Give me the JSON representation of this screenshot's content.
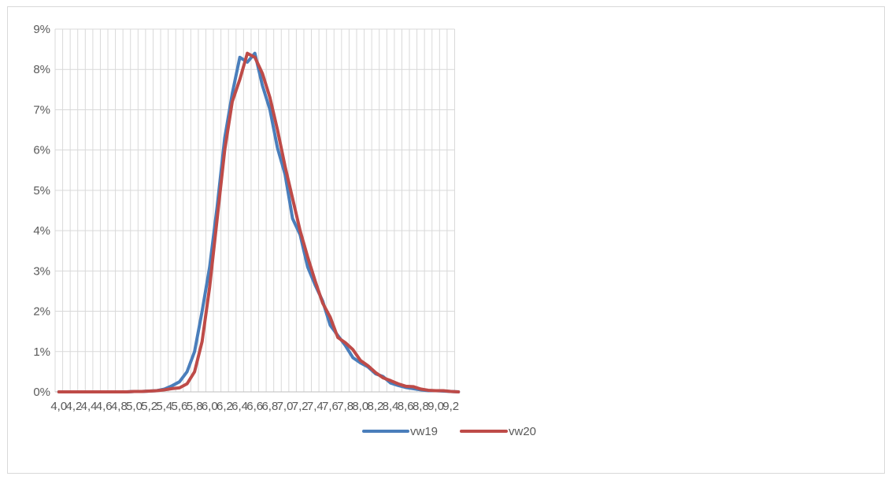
{
  "chart_data": {
    "type": "line",
    "title": "",
    "xlabel": "",
    "ylabel": "",
    "ylim": [
      0,
      0.09
    ],
    "xlim": [
      4.0,
      9.3
    ],
    "grid": true,
    "legend_position": "bottom",
    "y_ticks": [
      "0%",
      "1%",
      "2%",
      "3%",
      "4%",
      "5%",
      "6%",
      "7%",
      "8%",
      "9%"
    ],
    "x_ticks": [
      "4,0",
      "4,2",
      "4,4",
      "4,6",
      "4,8",
      "5,0",
      "5,2",
      "5,4",
      "5,6",
      "5,8",
      "6,0",
      "6,2",
      "6,4",
      "6,6",
      "6,8",
      "7,0",
      "7,2",
      "7,4",
      "7,6",
      "7,8",
      "8,0",
      "8,2",
      "8,4",
      "8,6",
      "8,8",
      "9,0",
      "9,2"
    ],
    "x": [
      4.0,
      4.1,
      4.2,
      4.3,
      4.4,
      4.5,
      4.6,
      4.7,
      4.8,
      4.9,
      5.0,
      5.1,
      5.2,
      5.3,
      5.4,
      5.5,
      5.6,
      5.7,
      5.8,
      5.9,
      6.0,
      6.1,
      6.2,
      6.3,
      6.4,
      6.5,
      6.6,
      6.7,
      6.8,
      6.9,
      7.0,
      7.1,
      7.2,
      7.3,
      7.4,
      7.5,
      7.6,
      7.7,
      7.8,
      7.9,
      8.0,
      8.1,
      8.2,
      8.3,
      8.4,
      8.5,
      8.6,
      8.7,
      8.8,
      8.9,
      9.0,
      9.1,
      9.2,
      9.3
    ],
    "series": [
      {
        "name": "vw19",
        "color": "#4a7ebb",
        "values": [
          0,
          0,
          0,
          0,
          0,
          0,
          0,
          0,
          0,
          0,
          0.0001,
          0.0001,
          0.0002,
          0.0003,
          0.0007,
          0.0015,
          0.0025,
          0.005,
          0.01,
          0.02,
          0.031,
          0.046,
          0.063,
          0.074,
          0.083,
          0.0818,
          0.084,
          0.076,
          0.07,
          0.0605,
          0.054,
          0.043,
          0.039,
          0.031,
          0.0265,
          0.0225,
          0.0165,
          0.014,
          0.0115,
          0.0085,
          0.0072,
          0.0062,
          0.0045,
          0.0038,
          0.0022,
          0.0016,
          0.0011,
          0.0008,
          0.0005,
          0.0003,
          0.0003,
          0.0002,
          0.0001,
          0
        ]
      },
      {
        "name": "vw20",
        "color": "#be4b48",
        "values": [
          0,
          0,
          0,
          0,
          0,
          0,
          0,
          0,
          0,
          0,
          0.0001,
          0.0001,
          0.0002,
          0.0003,
          0.0005,
          0.0008,
          0.001,
          0.002,
          0.005,
          0.0125,
          0.026,
          0.043,
          0.06,
          0.072,
          0.0775,
          0.084,
          0.083,
          0.079,
          0.073,
          0.065,
          0.056,
          0.048,
          0.04,
          0.0335,
          0.0275,
          0.022,
          0.0185,
          0.0135,
          0.0122,
          0.0105,
          0.0078,
          0.0065,
          0.0048,
          0.0035,
          0.0028,
          0.002,
          0.0014,
          0.0013,
          0.0007,
          0.0004,
          0.0003,
          0.0003,
          0.0001,
          0
        ]
      }
    ]
  }
}
